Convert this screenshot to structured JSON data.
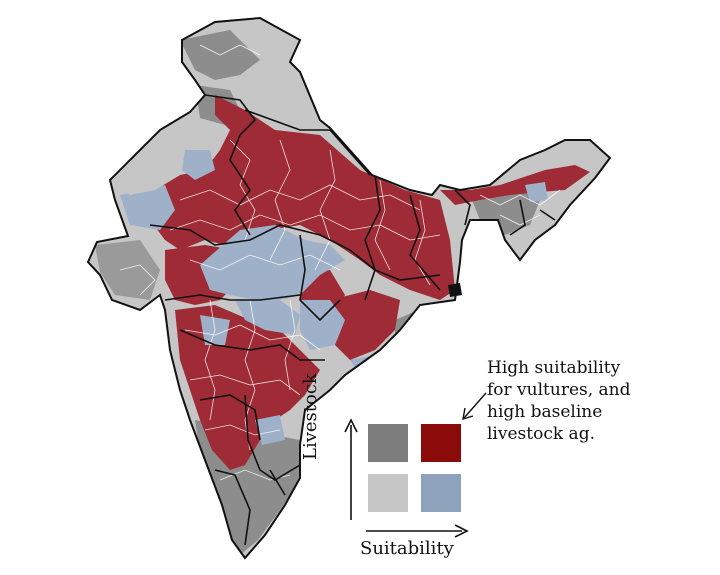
{
  "colors": {
    "high_high": "#8b0a0a",
    "high_livestock_low_suit": "#7d7d7d",
    "low_livestock_high_suit": "#8fa2bb",
    "low_low": "#c6c6c6",
    "map_red": "#9e2b35",
    "map_blue": "#9fb1c9",
    "map_gray": "#b9b9b9",
    "map_darkgray": "#8d8d8d"
  },
  "legend": {
    "y_axis_label": "Livestock",
    "x_axis_label": "Suitability",
    "cells": [
      {
        "livestock": "high",
        "suitability": "low",
        "color_key": "high_livestock_low_suit"
      },
      {
        "livestock": "high",
        "suitability": "high",
        "color_key": "high_high"
      },
      {
        "livestock": "low",
        "suitability": "low",
        "color_key": "low_low"
      },
      {
        "livestock": "low",
        "suitability": "high",
        "color_key": "low_livestock_high_suit"
      }
    ]
  },
  "annotation": {
    "lines": [
      "High suitability",
      "for vultures, and",
      "high baseline",
      "livestock ag."
    ]
  }
}
